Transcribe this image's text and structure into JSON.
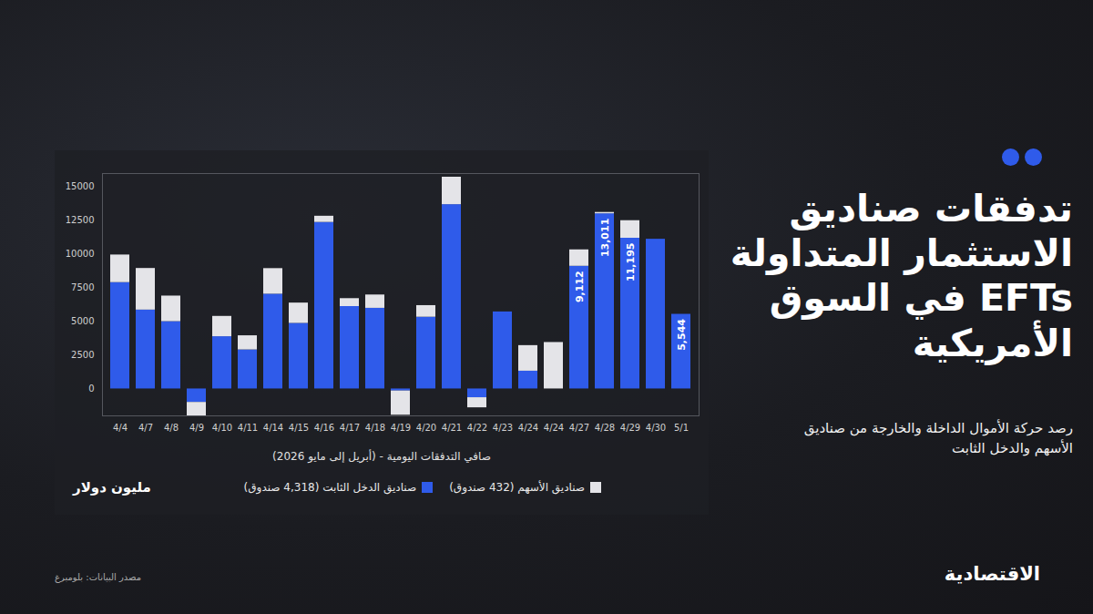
{
  "chart_data": {
    "type": "bar",
    "stacked": true,
    "title": "تدفقات صناديق الاستثمار المتداولة EFTs في السوق الأمريكية",
    "subtitle": "رصد حركة الأموال الداخلة والخارجة من صناديق الأسهم والدخل الثابت",
    "x_label": "صافي التدفقات اليومية - (أبريل إلى مايو 2026)",
    "y_label": "مليون دولار",
    "source": "مصدر البيانات: بلومبرغ",
    "publisher": "الاقتصادية",
    "categories": [
      "4/4",
      "4/7",
      "4/8",
      "4/9",
      "4/10",
      "4/11",
      "4/14",
      "4/15",
      "4/16",
      "4/17",
      "4/18",
      "4/19",
      "4/20",
      "4/21",
      "4/22",
      "4/23",
      "4/24",
      "4/24",
      "4/27",
      "4/28",
      "4/29",
      "4/30",
      "5/1"
    ],
    "series": [
      {
        "name": "صناديق الدخل الثابت (4,318 صندوق)",
        "color": "#2f5bea",
        "values": [
          7900,
          5860,
          5000,
          -1000,
          3880,
          2900,
          7040,
          4870,
          12370,
          6120,
          5990,
          -150,
          5330,
          13690,
          -650,
          5720,
          1320,
          0,
          9112,
          13011,
          11195,
          11120,
          5544
        ],
        "value_labels": [
          null,
          null,
          null,
          null,
          null,
          null,
          null,
          null,
          null,
          null,
          null,
          null,
          null,
          null,
          null,
          null,
          null,
          null,
          "9,112",
          "13,011",
          "11,195",
          null,
          "5,544"
        ]
      },
      {
        "name": "صناديق الأسهم (432 صندوق)",
        "color": "#e4e4e8",
        "values": [
          2050,
          3090,
          1900,
          -1050,
          1510,
          1050,
          1900,
          1510,
          460,
          590,
          990,
          -1800,
          860,
          2040,
          -750,
          0,
          1900,
          3450,
          1220,
          100,
          1305,
          0,
          0
        ]
      }
    ],
    "ylim": [
      -2000,
      16000
    ],
    "yticks": [
      0,
      2500,
      5000,
      7500,
      10000,
      12500,
      15000
    ],
    "grid": false,
    "data_labels": true
  }
}
